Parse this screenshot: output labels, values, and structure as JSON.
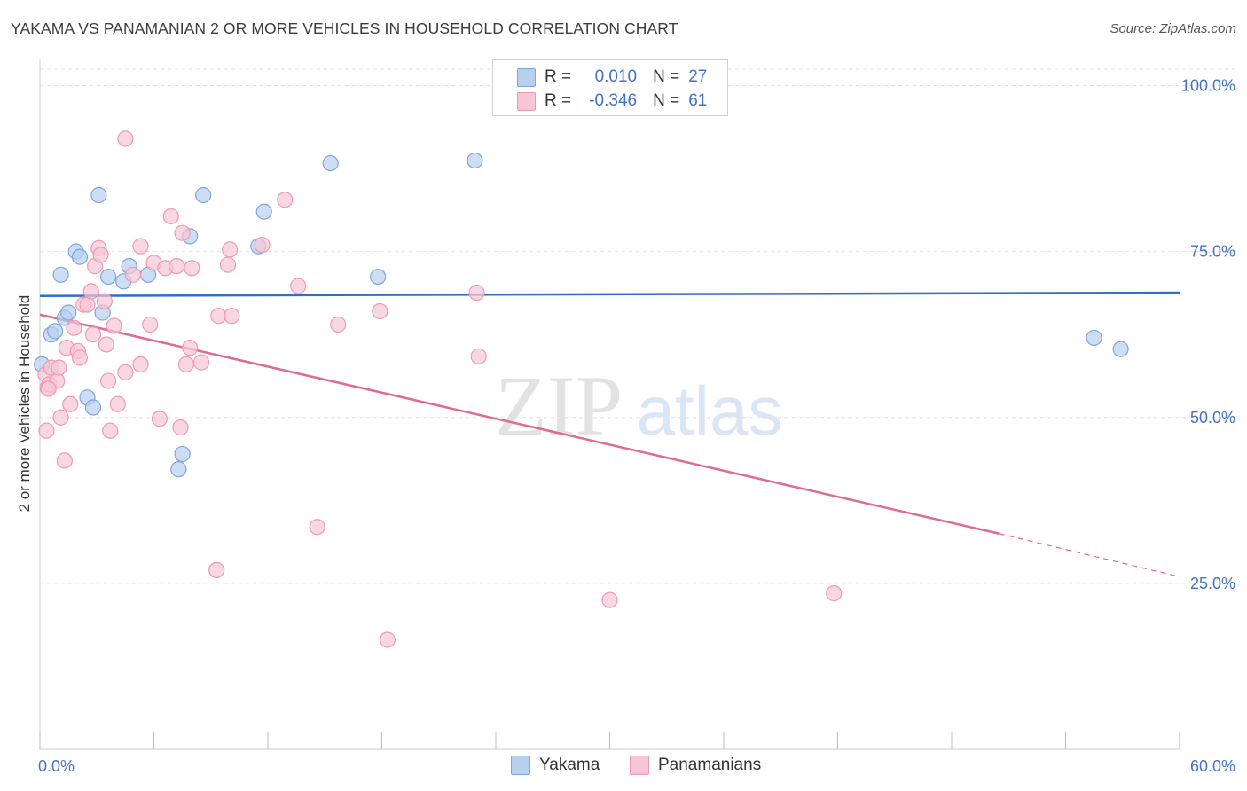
{
  "header": {
    "title": "YAKAMA VS PANAMANIAN 2 OR MORE VEHICLES IN HOUSEHOLD CORRELATION CHART",
    "source": "Source: ZipAtlas.com"
  },
  "legend": {
    "rows": [
      {
        "r_label": "R =",
        "r_value": "0.010",
        "n_label": "N =",
        "n_value": "27"
      },
      {
        "r_label": "R =",
        "r_value": "-0.346",
        "n_label": "N =",
        "n_value": "61"
      }
    ]
  },
  "bottom_legend": [
    "Yakama",
    "Panamanians"
  ],
  "watermark": {
    "zip": "ZIP",
    "atlas": "atlas"
  },
  "colors": {
    "yakama_fill": "#b8d0f0",
    "yakama_stroke": "#7ea6dc",
    "yakama_line": "#2f6fc7",
    "pan_fill": "#f7c6d5",
    "pan_stroke": "#ec9ab3",
    "pan_line": "#e06a94",
    "tick_text": "#4472c4"
  },
  "chart_data": {
    "type": "scatter",
    "title": "YAKAMA VS PANAMANIAN 2 OR MORE VEHICLES IN HOUSEHOLD CORRELATION CHART",
    "xlabel": "",
    "ylabel": "2 or more Vehicles in Household",
    "xlim": [
      0,
      60
    ],
    "ylim": [
      0,
      102
    ],
    "x_tick_labels": [
      "0.0%",
      "60.0%"
    ],
    "y_ticks": [
      25,
      50,
      75,
      100
    ],
    "y_tick_labels": [
      "25.0%",
      "50.0%",
      "75.0%",
      "100.0%"
    ],
    "grid": true,
    "legend_position": "top-center",
    "series": [
      {
        "name": "Yakama",
        "r": 0.01,
        "n": 27,
        "trend": {
          "x": [
            0,
            60
          ],
          "y": [
            68.3,
            68.8
          ]
        },
        "points": [
          [
            0.1,
            58.0
          ],
          [
            0.6,
            62.5
          ],
          [
            0.8,
            63.0
          ],
          [
            1.1,
            71.5
          ],
          [
            1.3,
            65.0
          ],
          [
            1.5,
            65.8
          ],
          [
            1.9,
            75.0
          ],
          [
            2.1,
            74.2
          ],
          [
            2.5,
            53.0
          ],
          [
            2.8,
            51.5
          ],
          [
            3.1,
            83.5
          ],
          [
            3.3,
            65.8
          ],
          [
            3.6,
            71.2
          ],
          [
            4.4,
            70.5
          ],
          [
            4.7,
            72.8
          ],
          [
            5.7,
            71.5
          ],
          [
            7.3,
            42.2
          ],
          [
            7.5,
            44.5
          ],
          [
            7.9,
            77.3
          ],
          [
            8.6,
            83.5
          ],
          [
            11.5,
            75.8
          ],
          [
            11.8,
            81.0
          ],
          [
            15.3,
            88.3
          ],
          [
            17.8,
            71.2
          ],
          [
            22.9,
            88.7
          ],
          [
            55.5,
            62.0
          ],
          [
            56.9,
            60.3
          ]
        ]
      },
      {
        "name": "Panamanians",
        "r": -0.346,
        "n": 61,
        "trend": {
          "x": [
            0,
            50.5
          ],
          "y": [
            65.5,
            32.5
          ]
        },
        "trend_dashed": {
          "x": [
            50.5,
            60
          ],
          "y": [
            32.5,
            26.0
          ]
        },
        "points": [
          [
            0.3,
            56.5
          ],
          [
            0.35,
            48.0
          ],
          [
            0.4,
            54.5
          ],
          [
            0.5,
            55.0
          ],
          [
            0.6,
            57.5
          ],
          [
            0.9,
            55.5
          ],
          [
            1.0,
            57.5
          ],
          [
            1.1,
            50.0
          ],
          [
            1.3,
            43.5
          ],
          [
            1.4,
            60.5
          ],
          [
            1.6,
            52.0
          ],
          [
            1.8,
            63.5
          ],
          [
            2.0,
            60.0
          ],
          [
            2.1,
            59.0
          ],
          [
            2.3,
            67.0
          ],
          [
            2.5,
            67.0
          ],
          [
            2.7,
            69.0
          ],
          [
            2.8,
            62.5
          ],
          [
            2.9,
            72.8
          ],
          [
            3.1,
            75.5
          ],
          [
            3.2,
            74.5
          ],
          [
            3.4,
            67.5
          ],
          [
            3.5,
            61.0
          ],
          [
            3.6,
            55.5
          ],
          [
            3.7,
            48.0
          ],
          [
            3.9,
            63.8
          ],
          [
            4.1,
            52.0
          ],
          [
            4.5,
            56.8
          ],
          [
            4.5,
            92.0
          ],
          [
            4.9,
            71.5
          ],
          [
            5.3,
            58.0
          ],
          [
            5.3,
            75.8
          ],
          [
            5.8,
            64.0
          ],
          [
            6.0,
            73.3
          ],
          [
            6.3,
            49.8
          ],
          [
            6.6,
            72.5
          ],
          [
            6.9,
            80.3
          ],
          [
            7.2,
            72.8
          ],
          [
            7.4,
            48.5
          ],
          [
            7.5,
            77.8
          ],
          [
            7.7,
            58.0
          ],
          [
            7.9,
            60.5
          ],
          [
            8.0,
            72.5
          ],
          [
            8.5,
            58.3
          ],
          [
            9.3,
            27.0
          ],
          [
            9.4,
            65.3
          ],
          [
            9.9,
            73.0
          ],
          [
            10.0,
            75.3
          ],
          [
            10.1,
            65.3
          ],
          [
            11.7,
            76.0
          ],
          [
            12.9,
            82.8
          ],
          [
            13.6,
            69.8
          ],
          [
            14.6,
            33.5
          ],
          [
            15.7,
            64.0
          ],
          [
            17.9,
            66.0
          ],
          [
            18.3,
            16.5
          ],
          [
            23.0,
            68.8
          ],
          [
            23.1,
            59.2
          ],
          [
            30.0,
            22.5
          ],
          [
            41.8,
            23.5
          ],
          [
            0.45,
            54.3
          ]
        ]
      }
    ]
  }
}
